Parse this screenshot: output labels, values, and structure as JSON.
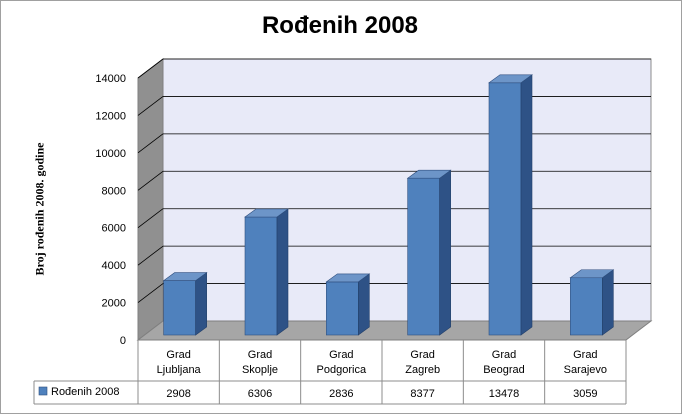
{
  "chart_data": {
    "type": "bar",
    "title": "Rođenih 2008",
    "xlabel": "",
    "ylabel": "Broj rođenih 2008. godine",
    "categories": [
      [
        "Grad",
        "Ljubljana"
      ],
      [
        "Grad",
        "Skoplje"
      ],
      [
        "Grad",
        "Podgorica"
      ],
      [
        "Grad",
        "Zagreb"
      ],
      [
        "Grad",
        "Beograd"
      ],
      [
        "Grad",
        "Sarajevo"
      ]
    ],
    "series": [
      {
        "name": "Rođenih 2008",
        "values": [
          2908,
          6306,
          2836,
          8377,
          13478,
          3059
        ]
      }
    ],
    "ylim": [
      0,
      14000
    ],
    "yticks": [
      0,
      2000,
      4000,
      6000,
      8000,
      10000,
      12000,
      14000
    ],
    "grid": true,
    "legend": "data-table",
    "colors": {
      "bar": "#4f81bd",
      "wall": "#e8eaf8",
      "floor": "#a6a6a6",
      "side_wall": "#909090"
    }
  }
}
